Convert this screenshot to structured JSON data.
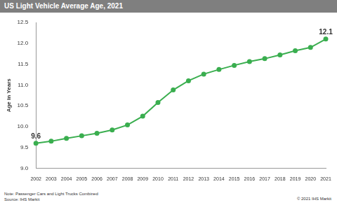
{
  "chart_data": {
    "type": "line",
    "title": "US Light Vehicle Average Age, 2021",
    "y_label": "Age in Years",
    "categories": [
      "2002",
      "2003",
      "2004",
      "2005",
      "2006",
      "2007",
      "2008",
      "2009",
      "2010",
      "2011",
      "2012",
      "2013",
      "2014",
      "2015",
      "2016",
      "2017",
      "2018",
      "2019",
      "2020",
      "2021"
    ],
    "values": [
      9.6,
      9.65,
      9.72,
      9.78,
      9.84,
      9.92,
      10.04,
      10.25,
      10.58,
      10.88,
      11.1,
      11.26,
      11.37,
      11.47,
      11.56,
      11.63,
      11.72,
      11.82,
      11.9,
      12.1
    ],
    "color": "#3aae4f",
    "marker": "circle",
    "ylim": [
      9,
      12.5
    ],
    "yticks": [
      {
        "value": 9,
        "label": "9.0"
      },
      9.5,
      {
        "value": 10,
        "label": "10.0"
      },
      10.5,
      {
        "value": 11,
        "label": "11.0"
      },
      11.5,
      {
        "value": 12,
        "label": "12.0"
      },
      12.5
    ],
    "grid": false,
    "annotations": [
      {
        "x": "2002",
        "label": "9.6"
      },
      {
        "x": "2021",
        "label": "12.1"
      }
    ],
    "note": "Note: Passenger Cars and Light Trucks Combined",
    "source": "Source: IHS Markit",
    "copyright": "© 2021 IHS Markit"
  }
}
